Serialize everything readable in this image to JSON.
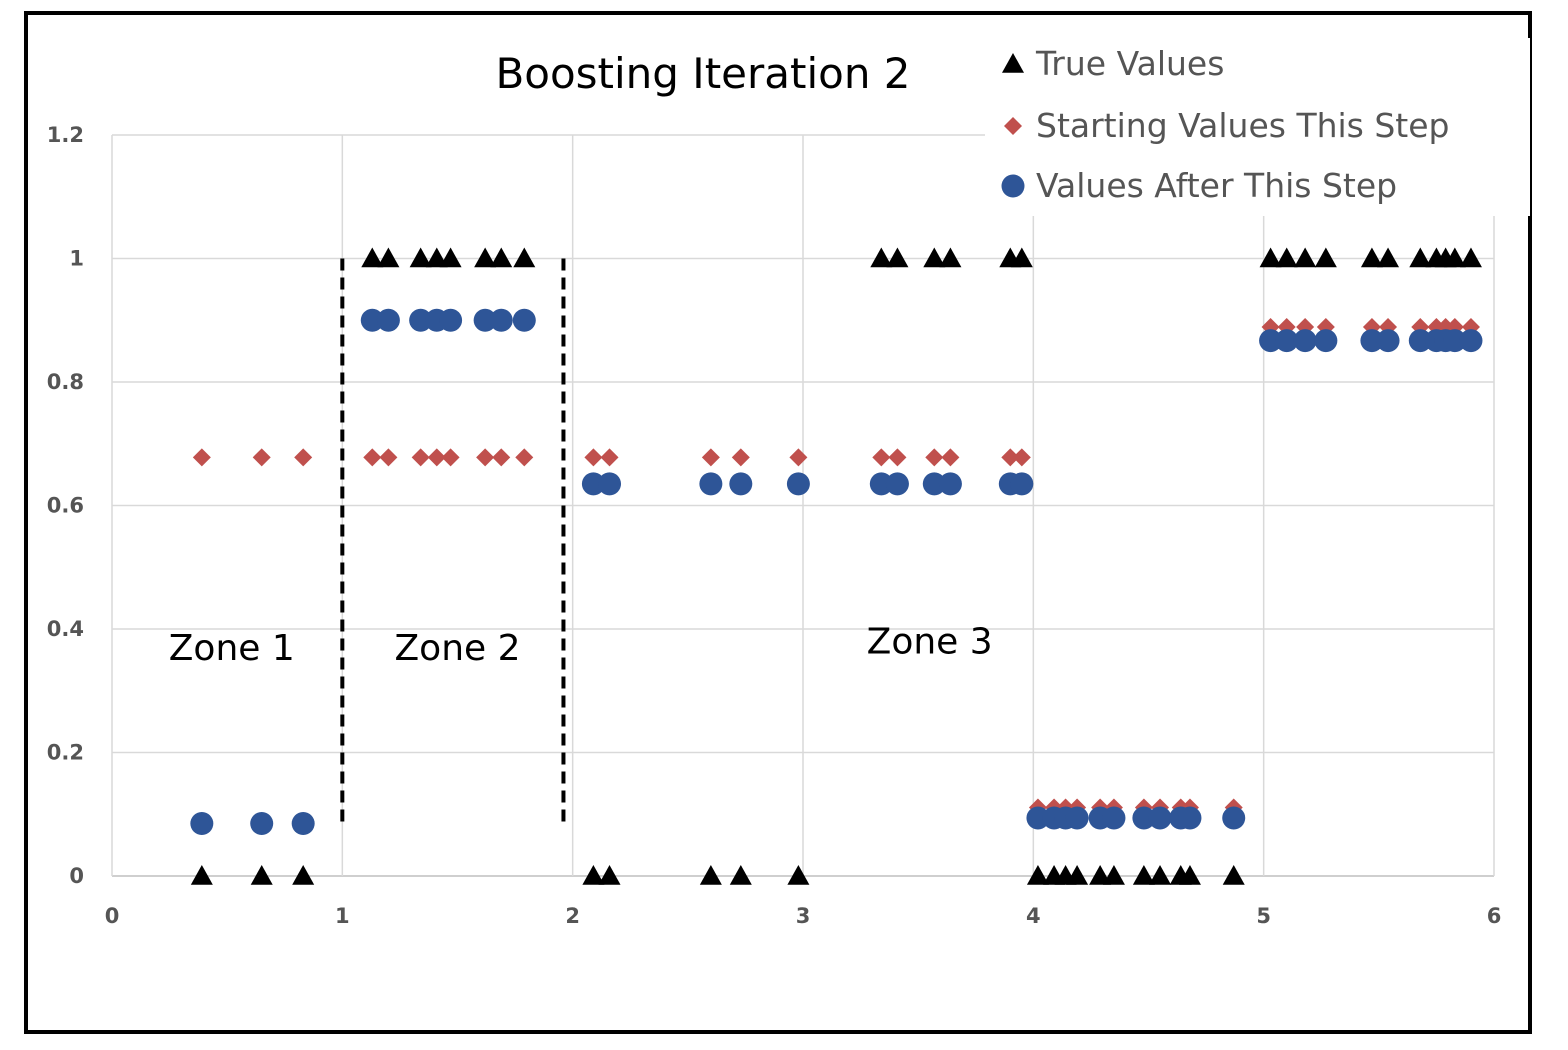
{
  "chart_data": {
    "type": "scatter",
    "title": "Boosting Iteration 2",
    "xlim": [
      0,
      6
    ],
    "ylim": [
      0,
      1.2
    ],
    "x_ticks": [
      "0",
      "1",
      "2",
      "3",
      "4",
      "5",
      "6"
    ],
    "y_ticks": [
      "0",
      "0.2",
      "0.4",
      "0.6",
      "0.8",
      "1",
      "1.2"
    ],
    "grid": true,
    "legend_position": "top-right",
    "zones": [
      {
        "label": "Zone 1",
        "x": 0.52,
        "y": 0.35
      },
      {
        "label": "Zone 2",
        "x": 1.5,
        "y": 0.35
      },
      {
        "label": "Zone 3",
        "x": 3.55,
        "y": 0.36
      }
    ],
    "zone_dividers": [
      1.0,
      1.96
    ],
    "series": [
      {
        "name": "True Values",
        "marker": "triangle",
        "color": "#000000",
        "points": [
          [
            0.39,
            0
          ],
          [
            0.65,
            0
          ],
          [
            0.83,
            0
          ],
          [
            1.13,
            1
          ],
          [
            1.2,
            1
          ],
          [
            1.34,
            1
          ],
          [
            1.41,
            1
          ],
          [
            1.47,
            1
          ],
          [
            1.62,
            1
          ],
          [
            1.69,
            1
          ],
          [
            1.79,
            1
          ],
          [
            2.09,
            0
          ],
          [
            2.16,
            0
          ],
          [
            2.6,
            0
          ],
          [
            2.73,
            0
          ],
          [
            2.98,
            0
          ],
          [
            3.34,
            1
          ],
          [
            3.41,
            1
          ],
          [
            3.57,
            1
          ],
          [
            3.64,
            1
          ],
          [
            3.9,
            1
          ],
          [
            3.95,
            1
          ],
          [
            4.02,
            0
          ],
          [
            4.09,
            0
          ],
          [
            4.14,
            0
          ],
          [
            4.19,
            0
          ],
          [
            4.29,
            0
          ],
          [
            4.35,
            0
          ],
          [
            4.48,
            0
          ],
          [
            4.55,
            0
          ],
          [
            4.64,
            0
          ],
          [
            4.68,
            0
          ],
          [
            4.87,
            0
          ],
          [
            5.03,
            1
          ],
          [
            5.1,
            1
          ],
          [
            5.18,
            1
          ],
          [
            5.27,
            1
          ],
          [
            5.47,
            1
          ],
          [
            5.54,
            1
          ],
          [
            5.68,
            1
          ],
          [
            5.75,
            1
          ],
          [
            5.79,
            1
          ],
          [
            5.83,
            1
          ],
          [
            5.9,
            1
          ]
        ]
      },
      {
        "name": "Starting Values This Step",
        "marker": "diamond",
        "color": "#c0504d",
        "points": [
          [
            0.39,
            0.678
          ],
          [
            0.65,
            0.678
          ],
          [
            0.83,
            0.678
          ],
          [
            1.13,
            0.678
          ],
          [
            1.2,
            0.678
          ],
          [
            1.34,
            0.678
          ],
          [
            1.41,
            0.678
          ],
          [
            1.47,
            0.678
          ],
          [
            1.62,
            0.678
          ],
          [
            1.69,
            0.678
          ],
          [
            1.79,
            0.678
          ],
          [
            2.09,
            0.678
          ],
          [
            2.16,
            0.678
          ],
          [
            2.6,
            0.678
          ],
          [
            2.73,
            0.678
          ],
          [
            2.98,
            0.678
          ],
          [
            3.34,
            0.678
          ],
          [
            3.41,
            0.678
          ],
          [
            3.57,
            0.678
          ],
          [
            3.64,
            0.678
          ],
          [
            3.9,
            0.678
          ],
          [
            3.95,
            0.678
          ],
          [
            4.02,
            0.111
          ],
          [
            4.09,
            0.111
          ],
          [
            4.14,
            0.111
          ],
          [
            4.19,
            0.111
          ],
          [
            4.29,
            0.111
          ],
          [
            4.35,
            0.111
          ],
          [
            4.48,
            0.111
          ],
          [
            4.55,
            0.111
          ],
          [
            4.64,
            0.111
          ],
          [
            4.68,
            0.111
          ],
          [
            4.87,
            0.111
          ],
          [
            5.03,
            0.889
          ],
          [
            5.1,
            0.889
          ],
          [
            5.18,
            0.889
          ],
          [
            5.27,
            0.889
          ],
          [
            5.47,
            0.889
          ],
          [
            5.54,
            0.889
          ],
          [
            5.68,
            0.889
          ],
          [
            5.75,
            0.889
          ],
          [
            5.79,
            0.889
          ],
          [
            5.83,
            0.889
          ],
          [
            5.9,
            0.889
          ]
        ]
      },
      {
        "name": "Values After This Step",
        "marker": "circle",
        "color": "#2e5597",
        "points": [
          [
            0.39,
            0.085
          ],
          [
            0.65,
            0.085
          ],
          [
            0.83,
            0.085
          ],
          [
            1.13,
            0.9
          ],
          [
            1.2,
            0.9
          ],
          [
            1.34,
            0.9
          ],
          [
            1.41,
            0.9
          ],
          [
            1.47,
            0.9
          ],
          [
            1.62,
            0.9
          ],
          [
            1.69,
            0.9
          ],
          [
            1.79,
            0.9
          ],
          [
            2.09,
            0.635
          ],
          [
            2.16,
            0.635
          ],
          [
            2.6,
            0.635
          ],
          [
            2.73,
            0.635
          ],
          [
            2.98,
            0.635
          ],
          [
            3.34,
            0.635
          ],
          [
            3.41,
            0.635
          ],
          [
            3.57,
            0.635
          ],
          [
            3.64,
            0.635
          ],
          [
            3.9,
            0.635
          ],
          [
            3.95,
            0.635
          ],
          [
            4.02,
            0.094
          ],
          [
            4.09,
            0.094
          ],
          [
            4.14,
            0.094
          ],
          [
            4.19,
            0.094
          ],
          [
            4.29,
            0.094
          ],
          [
            4.35,
            0.094
          ],
          [
            4.48,
            0.094
          ],
          [
            4.55,
            0.094
          ],
          [
            4.64,
            0.094
          ],
          [
            4.68,
            0.094
          ],
          [
            4.87,
            0.094
          ],
          [
            5.03,
            0.867
          ],
          [
            5.1,
            0.867
          ],
          [
            5.18,
            0.867
          ],
          [
            5.27,
            0.867
          ],
          [
            5.47,
            0.867
          ],
          [
            5.54,
            0.867
          ],
          [
            5.68,
            0.867
          ],
          [
            5.75,
            0.867
          ],
          [
            5.79,
            0.867
          ],
          [
            5.83,
            0.867
          ],
          [
            5.9,
            0.867
          ]
        ]
      }
    ]
  }
}
